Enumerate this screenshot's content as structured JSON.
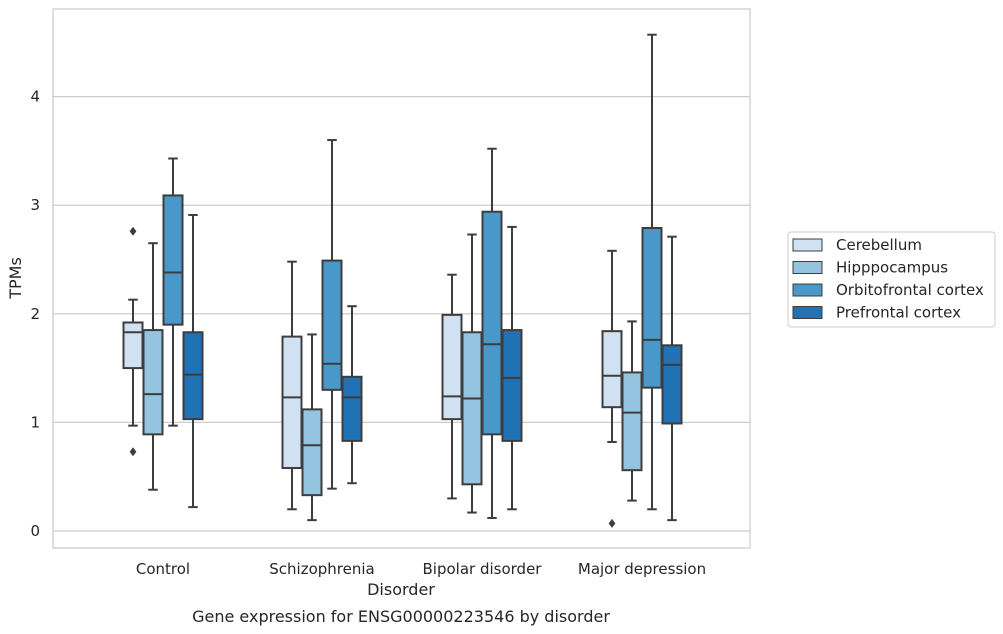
{
  "chart_data": {
    "type": "box",
    "title": "Gene expression for ENSG00000223546 by disorder",
    "xlabel": "Disorder",
    "ylabel": "TPMs",
    "ylim": [
      -0.15,
      4.8
    ],
    "yticks": [
      0,
      1,
      2,
      3,
      4
    ],
    "grid": "horizontal",
    "legend_position": "right",
    "categories": [
      "Control",
      "Schizophrenia",
      "Bipolar disorder",
      "Major depression"
    ],
    "series": [
      {
        "name": "Cerebellum",
        "color": "#d0e1f2",
        "boxes": [
          {
            "whislo": 0.97,
            "q1": 1.5,
            "med": 1.83,
            "q3": 1.92,
            "whishi": 2.13,
            "fliers": [
              2.76,
              0.73
            ]
          },
          {
            "whislo": 0.2,
            "q1": 0.58,
            "med": 1.23,
            "q3": 1.79,
            "whishi": 2.48,
            "fliers": []
          },
          {
            "whislo": 0.3,
            "q1": 1.03,
            "med": 1.24,
            "q3": 1.99,
            "whishi": 2.36,
            "fliers": []
          },
          {
            "whislo": 0.82,
            "q1": 1.14,
            "med": 1.43,
            "q3": 1.84,
            "whishi": 2.58,
            "fliers": [
              0.07
            ]
          }
        ]
      },
      {
        "name": "Hipppocampus",
        "color": "#94c4df",
        "boxes": [
          {
            "whislo": 0.38,
            "q1": 0.89,
            "med": 1.26,
            "q3": 1.85,
            "whishi": 2.65,
            "fliers": []
          },
          {
            "whislo": 0.1,
            "q1": 0.33,
            "med": 0.79,
            "q3": 1.12,
            "whishi": 1.81,
            "fliers": []
          },
          {
            "whislo": 0.17,
            "q1": 0.43,
            "med": 1.22,
            "q3": 1.83,
            "whishi": 2.73,
            "fliers": []
          },
          {
            "whislo": 0.28,
            "q1": 0.56,
            "med": 1.09,
            "q3": 1.46,
            "whishi": 1.93,
            "fliers": []
          }
        ]
      },
      {
        "name": "Orbitofrontal cortex",
        "color": "#4a98c9",
        "boxes": [
          {
            "whislo": 0.97,
            "q1": 1.9,
            "med": 2.38,
            "q3": 3.09,
            "whishi": 3.43,
            "fliers": []
          },
          {
            "whislo": 0.39,
            "q1": 1.3,
            "med": 1.54,
            "q3": 2.49,
            "whishi": 3.6,
            "fliers": []
          },
          {
            "whislo": 0.12,
            "q1": 0.89,
            "med": 1.72,
            "q3": 2.94,
            "whishi": 3.52,
            "fliers": []
          },
          {
            "whislo": 0.2,
            "q1": 1.32,
            "med": 1.76,
            "q3": 2.79,
            "whishi": 4.57,
            "fliers": []
          }
        ]
      },
      {
        "name": "Prefrontal cortex",
        "color": "#2171b5",
        "boxes": [
          {
            "whislo": 0.22,
            "q1": 1.03,
            "med": 1.44,
            "q3": 1.83,
            "whishi": 2.91,
            "fliers": []
          },
          {
            "whislo": 0.44,
            "q1": 0.83,
            "med": 1.23,
            "q3": 1.42,
            "whishi": 2.07,
            "fliers": []
          },
          {
            "whislo": 0.2,
            "q1": 0.83,
            "med": 1.41,
            "q3": 1.85,
            "whishi": 2.8,
            "fliers": []
          },
          {
            "whislo": 0.1,
            "q1": 0.99,
            "med": 1.53,
            "q3": 1.71,
            "whishi": 2.71,
            "fliers": []
          }
        ]
      }
    ]
  }
}
